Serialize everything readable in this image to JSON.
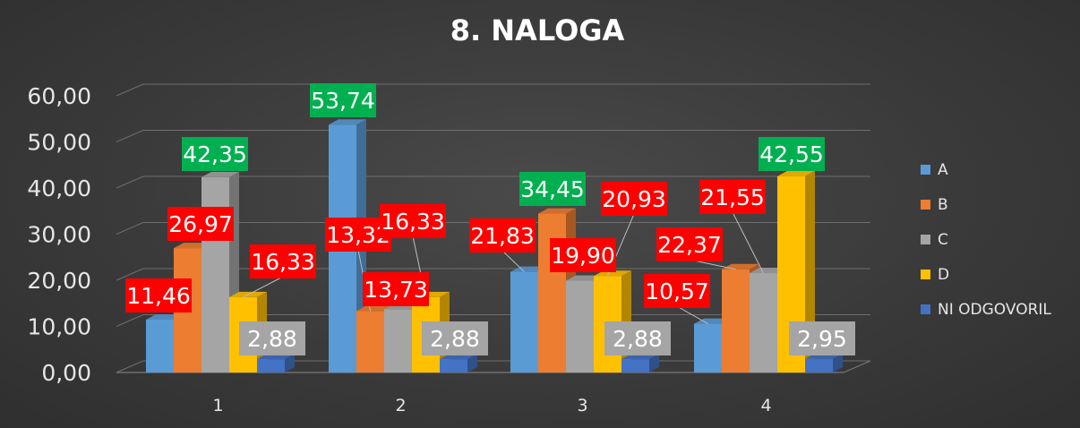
{
  "chart_data": {
    "type": "bar",
    "title": "8. NALOGA",
    "categories": [
      "1",
      "2",
      "3",
      "4"
    ],
    "yticks": [
      "0,00",
      "10,00",
      "20,00",
      "30,00",
      "40,00",
      "50,00",
      "60,00"
    ],
    "ylim": [
      0,
      60
    ],
    "grid": true,
    "legend_position": "right",
    "series": [
      {
        "name": "A",
        "color": "#5b9bd5",
        "values": [
          11.46,
          53.74,
          21.83,
          10.57
        ],
        "labels": [
          "11,46",
          "53,74",
          "21,83",
          "10,57"
        ]
      },
      {
        "name": "B",
        "color": "#ed7d31",
        "values": [
          26.97,
          13.32,
          34.45,
          22.37
        ],
        "labels": [
          "26,97",
          "13,32",
          "34,45",
          "22,37"
        ]
      },
      {
        "name": "C",
        "color": "#a5a5a5",
        "values": [
          42.35,
          13.73,
          19.9,
          21.55
        ],
        "labels": [
          "42,35",
          "13,73",
          "19,90",
          "21,55"
        ]
      },
      {
        "name": "D",
        "color": "#ffc000",
        "values": [
          16.33,
          16.33,
          20.93,
          42.55
        ],
        "labels": [
          "16,33",
          "16,33",
          "20,93",
          "42,55"
        ]
      },
      {
        "name": "NI ODGOVORIL",
        "color": "#4472c4",
        "values": [
          2.88,
          2.88,
          2.88,
          2.95
        ],
        "labels": [
          "2,88",
          "2,88",
          "2,88",
          "2,95"
        ]
      }
    ],
    "label_colors": {
      "max": "#00b050",
      "other": "#ff0000",
      "none": "#a5a5a5"
    }
  }
}
